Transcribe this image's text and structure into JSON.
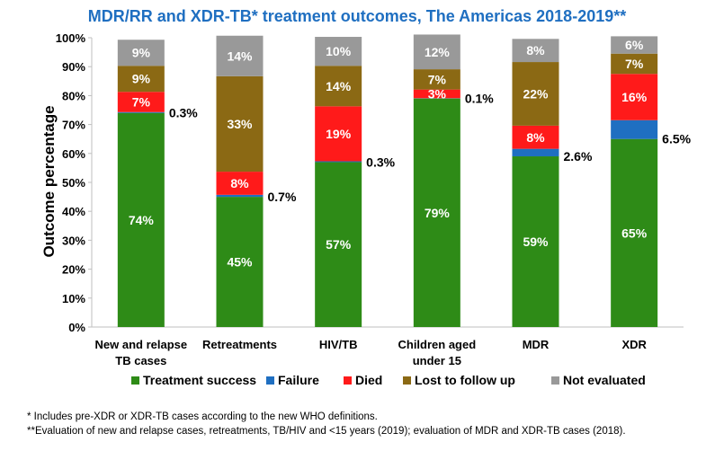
{
  "chart_data": {
    "type": "bar",
    "stacked": true,
    "title": "MDR/RR and XDR-TB* treatment outcomes, The Americas 2018-2019**",
    "ylabel": "Outcome percentage",
    "xlabel": "",
    "ylim": [
      0,
      100
    ],
    "yticks": [
      "0%",
      "10%",
      "20%",
      "30%",
      "40%",
      "50%",
      "60%",
      "70%",
      "80%",
      "90%",
      "100%"
    ],
    "grid": false,
    "legend_position": "bottom",
    "categories": [
      [
        "New and relapse",
        "TB cases"
      ],
      [
        "Retreatments"
      ],
      [
        "HIV/TB"
      ],
      [
        "Children aged",
        "under 15"
      ],
      [
        "MDR"
      ],
      [
        "XDR"
      ]
    ],
    "series": [
      {
        "name": "Treatment success",
        "color": "#2e8b17",
        "text_color": "#ffffff",
        "values": [
          74,
          45,
          57,
          79,
          59,
          65
        ],
        "labels": [
          "74%",
          "45%",
          "57%",
          "79%",
          "59%",
          "65%"
        ]
      },
      {
        "name": "Failure",
        "color": "#1f6fc1",
        "text_color": "#ffffff",
        "values": [
          0.3,
          0.7,
          0.3,
          0.1,
          2.6,
          6.5
        ],
        "labels": [
          "",
          "",
          "",
          "",
          "",
          ""
        ]
      },
      {
        "name": "Died",
        "color": "#ff1a1a",
        "text_color": "#ffffff",
        "values": [
          7,
          8,
          19,
          3,
          8,
          16
        ],
        "labels": [
          "7%",
          "8%",
          "19%",
          "3%",
          "8%",
          "16%"
        ]
      },
      {
        "name": "Lost to follow up",
        "color": "#8b6914",
        "text_color": "#ffffff",
        "values": [
          9,
          33,
          14,
          7,
          22,
          7
        ],
        "labels": [
          "9%",
          "33%",
          "14%",
          "7%",
          "22%",
          "7%"
        ]
      },
      {
        "name": "Not evaluated",
        "color": "#999999",
        "text_color": "#ffffff",
        "values": [
          9,
          14,
          10,
          12,
          8,
          6
        ],
        "labels": [
          "9%",
          "14%",
          "10%",
          "12%",
          "8%",
          "6%"
        ]
      }
    ],
    "failure_labels": [
      "0.3%",
      "0.7%",
      "0.3%",
      "0.1%",
      "2.6%",
      "6.5%"
    ]
  },
  "footnotes": [
    "* Includes pre-XDR or XDR-TB cases according to the new WHO definitions.",
    "**Evaluation of new and relapse cases, retreatments, TB/HIV and <15 years (2019); evaluation of MDR and XDR-TB cases (2018)."
  ],
  "colors": {
    "title": "#1f6fc1"
  }
}
